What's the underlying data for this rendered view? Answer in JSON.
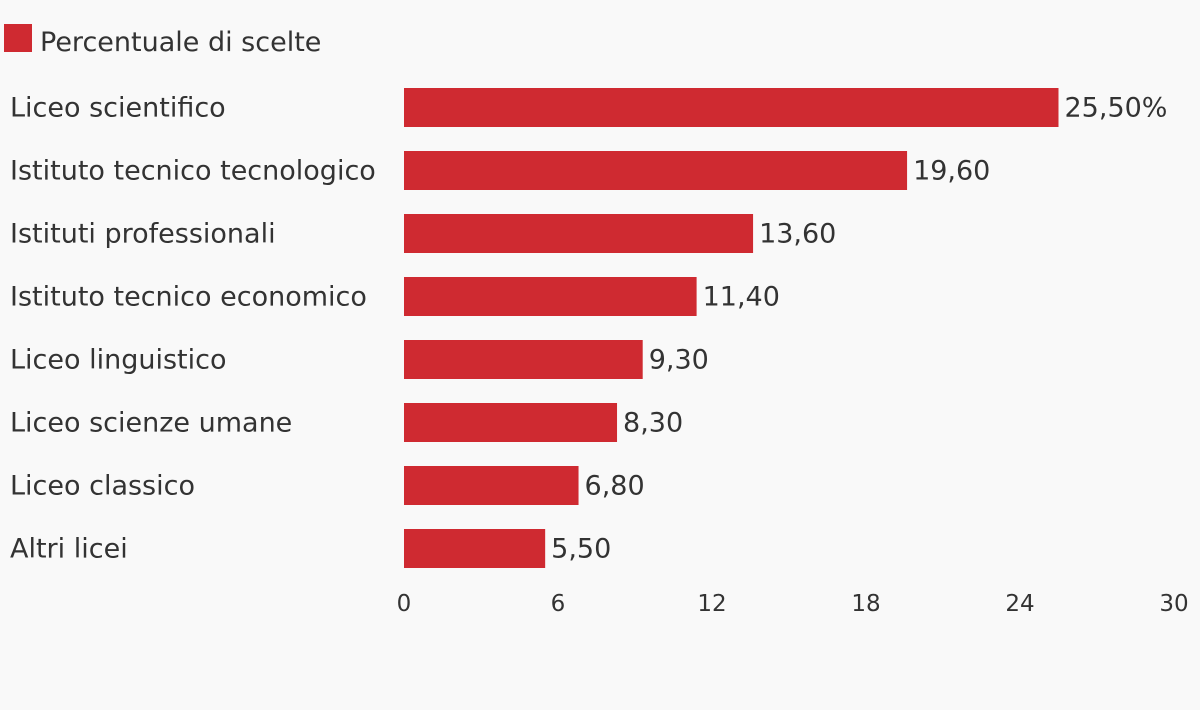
{
  "chart_data": {
    "type": "bar",
    "orientation": "horizontal",
    "categories": [
      "Liceo scientifico",
      "Istituto tecnico tecnologico",
      "Istituti professionali",
      "Istituto tecnico economico",
      "Liceo linguistico",
      "Liceo scienze umane",
      "Liceo classico",
      "Altri licei"
    ],
    "series": [
      {
        "name": "Percentuale di scelte",
        "values": [
          25.5,
          19.6,
          13.6,
          11.4,
          9.3,
          8.3,
          6.8,
          5.5
        ],
        "value_labels": [
          "25,50%",
          "19,60",
          "13,60",
          "11,40",
          "9,30",
          "8,30",
          "6,80",
          "5,50"
        ],
        "color": "#cf2a31"
      }
    ],
    "xlim": [
      0,
      30
    ],
    "xticks": [
      "0",
      "6",
      "12",
      "18",
      "24",
      "30"
    ],
    "legend_position": "top-left",
    "grid": false
  }
}
